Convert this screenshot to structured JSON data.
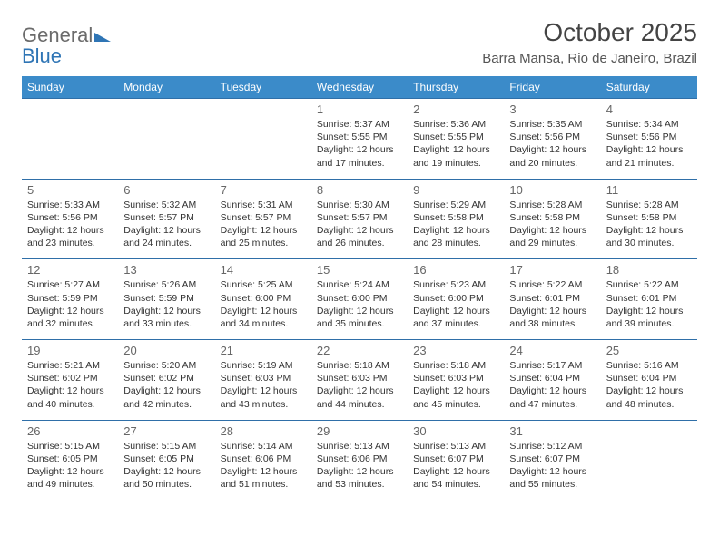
{
  "logo": {
    "word1": "General",
    "word2": "Blue"
  },
  "title": "October 2025",
  "location": "Barra Mansa, Rio de Janeiro, Brazil",
  "colors": {
    "header_bg": "#3b8bc9",
    "header_text": "#ffffff",
    "row_border": "#2f6fa8",
    "body_text": "#333333",
    "daynum_text": "#666666",
    "logo_gray": "#6b6b6b",
    "logo_blue": "#2f75b5",
    "background": "#ffffff"
  },
  "typography": {
    "title_fontsize": 28,
    "location_fontsize": 15,
    "dow_fontsize": 12,
    "daynum_fontsize": 13,
    "body_fontsize": 10.5,
    "font_family": "Arial"
  },
  "days_of_week": [
    "Sunday",
    "Monday",
    "Tuesday",
    "Wednesday",
    "Thursday",
    "Friday",
    "Saturday"
  ],
  "weeks": [
    [
      null,
      null,
      null,
      {
        "n": "1",
        "sunrise": "5:37 AM",
        "sunset": "5:55 PM",
        "daylight": "12 hours and 17 minutes."
      },
      {
        "n": "2",
        "sunrise": "5:36 AM",
        "sunset": "5:55 PM",
        "daylight": "12 hours and 19 minutes."
      },
      {
        "n": "3",
        "sunrise": "5:35 AM",
        "sunset": "5:56 PM",
        "daylight": "12 hours and 20 minutes."
      },
      {
        "n": "4",
        "sunrise": "5:34 AM",
        "sunset": "5:56 PM",
        "daylight": "12 hours and 21 minutes."
      }
    ],
    [
      {
        "n": "5",
        "sunrise": "5:33 AM",
        "sunset": "5:56 PM",
        "daylight": "12 hours and 23 minutes."
      },
      {
        "n": "6",
        "sunrise": "5:32 AM",
        "sunset": "5:57 PM",
        "daylight": "12 hours and 24 minutes."
      },
      {
        "n": "7",
        "sunrise": "5:31 AM",
        "sunset": "5:57 PM",
        "daylight": "12 hours and 25 minutes."
      },
      {
        "n": "8",
        "sunrise": "5:30 AM",
        "sunset": "5:57 PM",
        "daylight": "12 hours and 26 minutes."
      },
      {
        "n": "9",
        "sunrise": "5:29 AM",
        "sunset": "5:58 PM",
        "daylight": "12 hours and 28 minutes."
      },
      {
        "n": "10",
        "sunrise": "5:28 AM",
        "sunset": "5:58 PM",
        "daylight": "12 hours and 29 minutes."
      },
      {
        "n": "11",
        "sunrise": "5:28 AM",
        "sunset": "5:58 PM",
        "daylight": "12 hours and 30 minutes."
      }
    ],
    [
      {
        "n": "12",
        "sunrise": "5:27 AM",
        "sunset": "5:59 PM",
        "daylight": "12 hours and 32 minutes."
      },
      {
        "n": "13",
        "sunrise": "5:26 AM",
        "sunset": "5:59 PM",
        "daylight": "12 hours and 33 minutes."
      },
      {
        "n": "14",
        "sunrise": "5:25 AM",
        "sunset": "6:00 PM",
        "daylight": "12 hours and 34 minutes."
      },
      {
        "n": "15",
        "sunrise": "5:24 AM",
        "sunset": "6:00 PM",
        "daylight": "12 hours and 35 minutes."
      },
      {
        "n": "16",
        "sunrise": "5:23 AM",
        "sunset": "6:00 PM",
        "daylight": "12 hours and 37 minutes."
      },
      {
        "n": "17",
        "sunrise": "5:22 AM",
        "sunset": "6:01 PM",
        "daylight": "12 hours and 38 minutes."
      },
      {
        "n": "18",
        "sunrise": "5:22 AM",
        "sunset": "6:01 PM",
        "daylight": "12 hours and 39 minutes."
      }
    ],
    [
      {
        "n": "19",
        "sunrise": "5:21 AM",
        "sunset": "6:02 PM",
        "daylight": "12 hours and 40 minutes."
      },
      {
        "n": "20",
        "sunrise": "5:20 AM",
        "sunset": "6:02 PM",
        "daylight": "12 hours and 42 minutes."
      },
      {
        "n": "21",
        "sunrise": "5:19 AM",
        "sunset": "6:03 PM",
        "daylight": "12 hours and 43 minutes."
      },
      {
        "n": "22",
        "sunrise": "5:18 AM",
        "sunset": "6:03 PM",
        "daylight": "12 hours and 44 minutes."
      },
      {
        "n": "23",
        "sunrise": "5:18 AM",
        "sunset": "6:03 PM",
        "daylight": "12 hours and 45 minutes."
      },
      {
        "n": "24",
        "sunrise": "5:17 AM",
        "sunset": "6:04 PM",
        "daylight": "12 hours and 47 minutes."
      },
      {
        "n": "25",
        "sunrise": "5:16 AM",
        "sunset": "6:04 PM",
        "daylight": "12 hours and 48 minutes."
      }
    ],
    [
      {
        "n": "26",
        "sunrise": "5:15 AM",
        "sunset": "6:05 PM",
        "daylight": "12 hours and 49 minutes."
      },
      {
        "n": "27",
        "sunrise": "5:15 AM",
        "sunset": "6:05 PM",
        "daylight": "12 hours and 50 minutes."
      },
      {
        "n": "28",
        "sunrise": "5:14 AM",
        "sunset": "6:06 PM",
        "daylight": "12 hours and 51 minutes."
      },
      {
        "n": "29",
        "sunrise": "5:13 AM",
        "sunset": "6:06 PM",
        "daylight": "12 hours and 53 minutes."
      },
      {
        "n": "30",
        "sunrise": "5:13 AM",
        "sunset": "6:07 PM",
        "daylight": "12 hours and 54 minutes."
      },
      {
        "n": "31",
        "sunrise": "5:12 AM",
        "sunset": "6:07 PM",
        "daylight": "12 hours and 55 minutes."
      },
      null
    ]
  ],
  "labels": {
    "sunrise": "Sunrise:",
    "sunset": "Sunset:",
    "daylight": "Daylight:"
  }
}
